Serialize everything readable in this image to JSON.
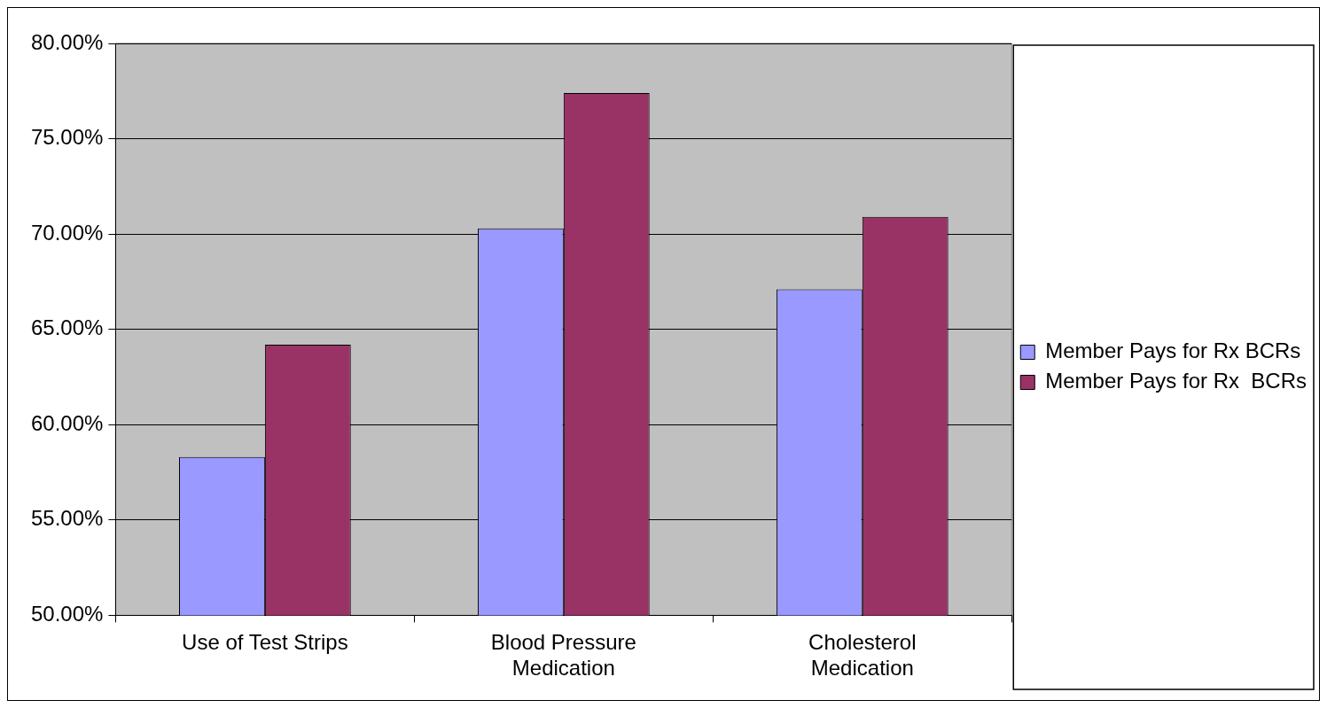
{
  "chart_data": {
    "type": "bar",
    "categories": [
      "Use of Test Strips",
      "Blood Pressure Medication",
      "Cholesterol Medication"
    ],
    "series": [
      {
        "name": "Member Pays for Rx BCRs",
        "color": "#9999ff",
        "values": [
          58.3,
          70.3,
          67.1
        ]
      },
      {
        "name": "Member Pays for Rx  BCRs",
        "color": "#993366",
        "values": [
          64.2,
          77.4,
          70.9
        ]
      }
    ],
    "ylim": [
      50,
      80
    ],
    "yticks": [
      {
        "value": 50,
        "label": "50.00%"
      },
      {
        "value": 55,
        "label": "55.00%"
      },
      {
        "value": 60,
        "label": "60.00%"
      },
      {
        "value": 65,
        "label": "65.00%"
      },
      {
        "value": 70,
        "label": "70.00%"
      },
      {
        "value": 75,
        "label": "75.00%"
      },
      {
        "value": 80,
        "label": "80.00%"
      }
    ],
    "grid": "y",
    "legend": "right"
  }
}
